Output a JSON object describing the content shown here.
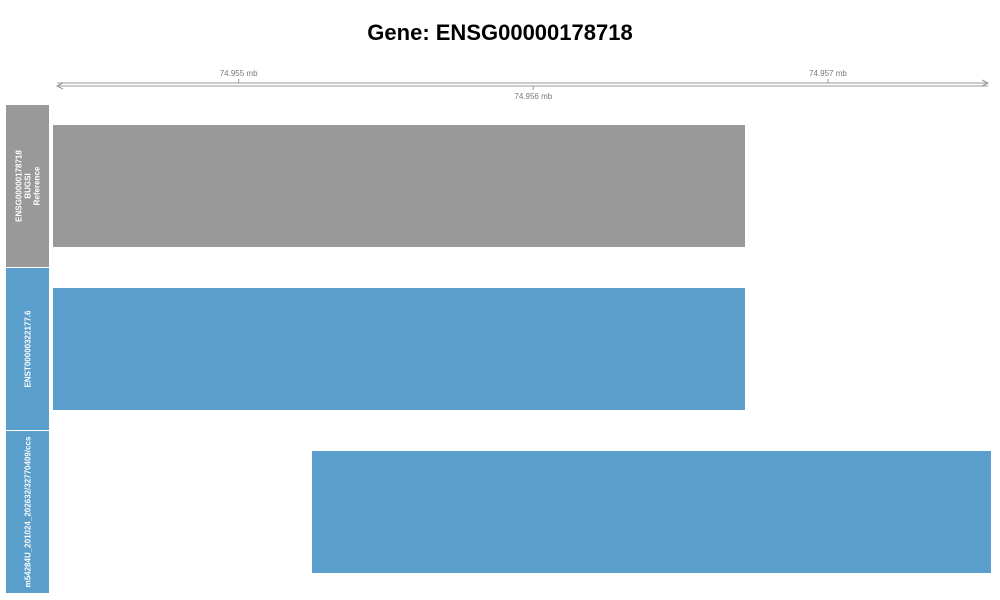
{
  "title": "Gene: ENSG00000178718",
  "colors": {
    "reference": "#999999",
    "transcript": "#5a9ecb",
    "axis": "#999999"
  },
  "axis": {
    "range_mb": [
      74.95437,
      74.95755
    ],
    "ticks": [
      {
        "value_mb": 74.955,
        "label": "74.955 mb",
        "side": "above"
      },
      {
        "value_mb": 74.956,
        "label": "74.956 mb",
        "side": "below"
      },
      {
        "value_mb": 74.957,
        "label": "74.957 mb",
        "side": "above"
      }
    ]
  },
  "tracks": [
    {
      "id": "reference",
      "label_lines": [
        "ENSG00000178718",
        "BUGSI",
        "Reference"
      ],
      "color": "#999999",
      "start_mb": 74.95436,
      "end_mb": 74.95672
    },
    {
      "id": "ENST00000322177.6",
      "label_lines": [
        "ENST00000322177.6"
      ],
      "color": "#5a9ecb",
      "start_mb": 74.95436,
      "end_mb": 74.95672
    },
    {
      "id": "m54284U_201024_202632/32770409/ccs",
      "label_lines": [
        "m54284U_201024_202632/32770409/ccs"
      ],
      "color": "#5a9ecb",
      "start_mb": 74.95525,
      "end_mb": 74.95757
    }
  ]
}
